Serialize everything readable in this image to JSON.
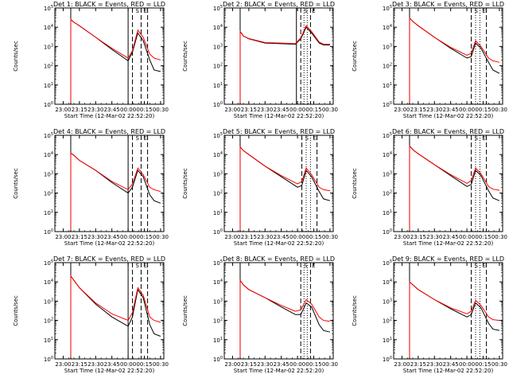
{
  "figure": {
    "background": "#ffffff",
    "black_color": "#000000",
    "red_color": "#ff0000"
  },
  "chart_data": [
    {
      "type": "line",
      "title": "Det 1: BLACK = Events, RED = LLD",
      "xlabel": "Start Time (12-Mar-02 22:52:20)",
      "ylabel": "Counts/sec",
      "x_tick_labels": [
        "23:00",
        "23:15",
        "23:30",
        "23:45",
        "00:00",
        "00:15",
        "00:30"
      ],
      "y_tick_labels": [
        "10^0",
        "10^1",
        "10^2",
        "10^3",
        "10^4",
        "10^5"
      ],
      "y_scale": "log",
      "ylim": [
        1,
        100000
      ],
      "xlim": [
        "22:52:20",
        "00:33"
      ],
      "annotations": [
        "S",
        "E"
      ],
      "solid_vlines": [
        "23:07",
        "00:00"
      ],
      "dashed_vlines": [
        "00:04",
        "00:12",
        "00:18"
      ],
      "dotted_vlines": [],
      "series": [
        {
          "name": "BLACK",
          "color": "#000000",
          "x": [
            "23:07",
            "23:10",
            "23:15",
            "23:30",
            "23:45",
            "00:00",
            "00:04",
            "00:09",
            "00:14",
            "00:20",
            "00:24",
            "00:30"
          ],
          "y": [
            25000,
            18000,
            12000,
            3000,
            700,
            180,
            500,
            5000,
            2000,
            200,
            60,
            50
          ]
        },
        {
          "name": "RED",
          "color": "#ff0000",
          "x": [
            "23:07",
            "23:10",
            "23:15",
            "23:30",
            "23:45",
            "00:00",
            "00:04",
            "00:09",
            "00:14",
            "00:20",
            "00:24",
            "00:30"
          ],
          "y": [
            25000,
            18000,
            12000,
            3000,
            800,
            250,
            600,
            7000,
            3000,
            400,
            250,
            200
          ]
        }
      ]
    },
    {
      "type": "line",
      "title": "Det 2: BLACK = Events, RED = LLD",
      "xlabel": "Start Time (12-Mar-02 22:52:20)",
      "ylabel": "Counts/sec",
      "x_tick_labels": [
        "23:00",
        "23:15",
        "23:30",
        "23:45",
        "00:00",
        "00:15",
        "00:30"
      ],
      "y_tick_labels": [
        "10^0",
        "10^1",
        "10^2",
        "10^3",
        "10^4",
        "10^5"
      ],
      "y_scale": "log",
      "ylim": [
        1,
        100000
      ],
      "xlim": [
        "22:52:20",
        "00:33"
      ],
      "annotations": [
        "S",
        "E"
      ],
      "solid_vlines": [
        "23:07",
        "23:59"
      ],
      "dashed_vlines": [
        "00:03",
        "00:12"
      ],
      "dotted_vlines": [
        "00:06",
        "00:09"
      ],
      "series": [
        {
          "name": "BLACK",
          "color": "#000000",
          "x": [
            "23:07",
            "23:10",
            "23:15",
            "23:30",
            "23:45",
            "23:58",
            "00:03",
            "00:08",
            "00:13",
            "00:20",
            "00:24",
            "00:30"
          ],
          "y": [
            6000,
            3500,
            2500,
            1500,
            1400,
            1300,
            2500,
            10000,
            5000,
            1500,
            1200,
            1200
          ]
        },
        {
          "name": "RED",
          "color": "#ff0000",
          "x": [
            "23:07",
            "23:10",
            "23:15",
            "23:30",
            "23:45",
            "23:58",
            "00:03",
            "00:08",
            "00:13",
            "00:20",
            "00:24",
            "00:30"
          ],
          "y": [
            6000,
            3500,
            2600,
            1600,
            1500,
            1400,
            2800,
            12000,
            6000,
            1700,
            1300,
            1300
          ]
        }
      ]
    },
    {
      "type": "line",
      "title": "Det 3: BLACK = Events, RED = LLD",
      "xlabel": "Start Time (12-Mar-02 22:52:20)",
      "ylabel": "Counts/sec",
      "x_tick_labels": [
        "23:00",
        "23:15",
        "23:30",
        "23:45",
        "00:00",
        "00:15",
        "00:30"
      ],
      "y_tick_labels": [
        "10^0",
        "10^1",
        "10^2",
        "10^3",
        "10^4",
        "10^5"
      ],
      "y_scale": "log",
      "ylim": [
        1,
        100000
      ],
      "xlim": [
        "22:52:20",
        "00:33"
      ],
      "annotations": [
        "S",
        "E"
      ],
      "solid_vlines": [
        "23:07"
      ],
      "dashed_vlines": [
        "00:04",
        "00:18"
      ],
      "dotted_vlines": [
        "00:08",
        "00:12"
      ],
      "series": [
        {
          "name": "BLACK",
          "color": "#000000",
          "x": [
            "23:07",
            "23:10",
            "23:15",
            "23:30",
            "23:45",
            "00:00",
            "00:04",
            "00:08",
            "00:13",
            "00:20",
            "00:24",
            "00:30"
          ],
          "y": [
            30000,
            20000,
            12000,
            3000,
            800,
            250,
            300,
            1500,
            800,
            150,
            60,
            40
          ]
        },
        {
          "name": "RED",
          "color": "#ff0000",
          "x": [
            "23:07",
            "23:10",
            "23:15",
            "23:30",
            "23:45",
            "00:00",
            "00:04",
            "00:08",
            "00:13",
            "00:20",
            "00:24",
            "00:30"
          ],
          "y": [
            30000,
            20000,
            12000,
            3000,
            900,
            350,
            450,
            2000,
            1000,
            250,
            180,
            150
          ]
        }
      ]
    },
    {
      "type": "line",
      "title": "Det 4: BLACK = Events, RED = LLD",
      "xlabel": "Start Time (12-Mar-02 22:52:20)",
      "ylabel": "Counts/sec",
      "x_tick_labels": [
        "23:00",
        "23:15",
        "23:30",
        "23:45",
        "00:00",
        "00:15",
        "00:30"
      ],
      "y_tick_labels": [
        "10^0",
        "10^1",
        "10^2",
        "10^3",
        "10^4",
        "10^5"
      ],
      "y_scale": "log",
      "ylim": [
        1,
        100000
      ],
      "xlim": [
        "22:52:20",
        "00:33"
      ],
      "annotations": [
        "S",
        "E"
      ],
      "solid_vlines": [
        "23:07",
        "00:00"
      ],
      "dashed_vlines": [
        "00:04",
        "00:12",
        "00:18"
      ],
      "dotted_vlines": [],
      "series": [
        {
          "name": "BLACK",
          "color": "#000000",
          "x": [
            "23:07",
            "23:10",
            "23:15",
            "23:30",
            "23:45",
            "00:00",
            "00:04",
            "00:09",
            "00:14",
            "00:20",
            "00:24",
            "00:30"
          ],
          "y": [
            12000,
            9000,
            5000,
            1500,
            350,
            100,
            200,
            1500,
            700,
            80,
            40,
            30
          ]
        },
        {
          "name": "RED",
          "color": "#ff0000",
          "x": [
            "23:07",
            "23:10",
            "23:15",
            "23:30",
            "23:45",
            "00:00",
            "00:04",
            "00:09",
            "00:14",
            "00:20",
            "00:24",
            "00:30"
          ],
          "y": [
            12000,
            9000,
            5000,
            1500,
            400,
            150,
            300,
            2000,
            900,
            200,
            150,
            120
          ]
        }
      ]
    },
    {
      "type": "line",
      "title": "Det 5: BLACK = Events, RED = LLD",
      "xlabel": "Start Time (12-Mar-02 22:52:20)",
      "ylabel": "Counts/sec",
      "x_tick_labels": [
        "23:00",
        "23:15",
        "23:30",
        "23:45",
        "00:00",
        "00:15",
        "00:30"
      ],
      "y_tick_labels": [
        "10^0",
        "10^1",
        "10^2",
        "10^3",
        "10^4",
        "10^5"
      ],
      "y_scale": "log",
      "ylim": [
        1,
        100000
      ],
      "xlim": [
        "22:52:20",
        "00:33"
      ],
      "annotations": [
        "S",
        "E"
      ],
      "solid_vlines": [
        "23:07"
      ],
      "dashed_vlines": [
        "00:04",
        "00:18"
      ],
      "dotted_vlines": [
        "00:08",
        "00:12"
      ],
      "series": [
        {
          "name": "BLACK",
          "color": "#000000",
          "x": [
            "23:07",
            "23:10",
            "23:15",
            "23:30",
            "23:45",
            "00:00",
            "00:04",
            "00:08",
            "00:13",
            "00:20",
            "00:24",
            "00:30"
          ],
          "y": [
            25000,
            16000,
            10000,
            2500,
            700,
            200,
            250,
            1500,
            700,
            120,
            50,
            40
          ]
        },
        {
          "name": "RED",
          "color": "#ff0000",
          "x": [
            "23:07",
            "23:10",
            "23:15",
            "23:30",
            "23:45",
            "00:00",
            "00:04",
            "00:08",
            "00:13",
            "00:20",
            "00:24",
            "00:30"
          ],
          "y": [
            25000,
            16000,
            10000,
            2500,
            800,
            300,
            400,
            2000,
            900,
            200,
            150,
            130
          ]
        }
      ]
    },
    {
      "type": "line",
      "title": "Det 6: BLACK = Events, RED = LLD",
      "xlabel": "Start Time (12-Mar-02 22:52:20)",
      "ylabel": "Counts/sec",
      "x_tick_labels": [
        "23:00",
        "23:15",
        "23:30",
        "23:45",
        "00:00",
        "00:15",
        "00:30"
      ],
      "y_tick_labels": [
        "10^0",
        "10^1",
        "10^2",
        "10^3",
        "10^4",
        "10^5"
      ],
      "y_scale": "log",
      "ylim": [
        1,
        100000
      ],
      "xlim": [
        "22:52:20",
        "00:33"
      ],
      "annotations": [
        "S",
        "E"
      ],
      "solid_vlines": [
        "23:07"
      ],
      "dashed_vlines": [
        "00:04",
        "00:18"
      ],
      "dotted_vlines": [
        "00:08",
        "00:12"
      ],
      "series": [
        {
          "name": "BLACK",
          "color": "#000000",
          "x": [
            "23:07",
            "23:10",
            "23:15",
            "23:30",
            "23:45",
            "00:00",
            "00:04",
            "00:08",
            "00:13",
            "00:20",
            "00:24",
            "00:30"
          ],
          "y": [
            28000,
            18000,
            11000,
            3000,
            800,
            220,
            280,
            1500,
            800,
            130,
            55,
            40
          ]
        },
        {
          "name": "RED",
          "color": "#ff0000",
          "x": [
            "23:07",
            "23:10",
            "23:15",
            "23:30",
            "23:45",
            "00:00",
            "00:04",
            "00:08",
            "00:13",
            "00:20",
            "00:24",
            "00:30"
          ],
          "y": [
            28000,
            18000,
            11000,
            3000,
            900,
            320,
            450,
            2000,
            1000,
            220,
            160,
            140
          ]
        }
      ]
    },
    {
      "type": "line",
      "title": "Det 7: BLACK = Events, RED = LLD",
      "xlabel": "Start Time (12-Mar-02 22:52:20)",
      "ylabel": "Counts/sec",
      "x_tick_labels": [
        "23:00",
        "23:15",
        "23:30",
        "23:45",
        "00:00",
        "00:15",
        "00:30"
      ],
      "y_tick_labels": [
        "10^0",
        "10^1",
        "10^2",
        "10^3",
        "10^4",
        "10^5"
      ],
      "y_scale": "log",
      "ylim": [
        1,
        100000
      ],
      "xlim": [
        "22:52:20",
        "00:33"
      ],
      "annotations": [
        "S",
        "E"
      ],
      "solid_vlines": [
        "23:07",
        "00:00"
      ],
      "dashed_vlines": [
        "00:04",
        "00:12",
        "00:18"
      ],
      "dotted_vlines": [],
      "series": [
        {
          "name": "BLACK",
          "color": "#000000",
          "x": [
            "23:07",
            "23:10",
            "23:15",
            "23:30",
            "23:45",
            "00:00",
            "00:04",
            "00:09",
            "00:14",
            "00:20",
            "00:24",
            "00:30"
          ],
          "y": [
            20000,
            12000,
            5000,
            700,
            150,
            50,
            150,
            4000,
            1500,
            60,
            20,
            15
          ]
        },
        {
          "name": "RED",
          "color": "#ff0000",
          "x": [
            "23:07",
            "23:10",
            "23:15",
            "23:30",
            "23:45",
            "00:00",
            "00:04",
            "00:09",
            "00:14",
            "00:20",
            "00:24",
            "00:30"
          ],
          "y": [
            20000,
            12000,
            5000,
            800,
            220,
            100,
            250,
            5000,
            2000,
            150,
            100,
            80
          ]
        }
      ]
    },
    {
      "type": "line",
      "title": "Det 8: BLACK = Events, RED = LLD",
      "xlabel": "Start Time (12-Mar-02 22:52:20)",
      "ylabel": "Counts/sec",
      "x_tick_labels": [
        "23:00",
        "23:15",
        "23:30",
        "23:45",
        "00:00",
        "00:15",
        "00:30"
      ],
      "y_tick_labels": [
        "10^0",
        "10^1",
        "10^2",
        "10^3",
        "10^4",
        "10^5"
      ],
      "y_scale": "log",
      "ylim": [
        1,
        100000
      ],
      "xlim": [
        "22:52:20",
        "00:33"
      ],
      "annotations": [
        "S",
        "E"
      ],
      "solid_vlines": [
        "23:07"
      ],
      "dashed_vlines": [
        "00:03",
        "00:12"
      ],
      "dotted_vlines": [
        "00:06",
        "00:09"
      ],
      "series": [
        {
          "name": "BLACK",
          "color": "#000000",
          "x": [
            "23:07",
            "23:10",
            "23:15",
            "23:30",
            "23:45",
            "23:58",
            "00:03",
            "00:08",
            "00:13",
            "00:20",
            "00:24",
            "00:30"
          ],
          "y": [
            12000,
            7000,
            4000,
            1500,
            500,
            200,
            200,
            800,
            500,
            60,
            30,
            25
          ]
        },
        {
          "name": "RED",
          "color": "#ff0000",
          "x": [
            "23:07",
            "23:10",
            "23:15",
            "23:30",
            "23:45",
            "23:58",
            "00:03",
            "00:08",
            "00:13",
            "00:20",
            "00:24",
            "00:30"
          ],
          "y": [
            12000,
            7000,
            4000,
            1500,
            600,
            300,
            350,
            1200,
            700,
            150,
            100,
            90
          ]
        }
      ]
    },
    {
      "type": "line",
      "title": "Det 9: BLACK = Events, RED = LLD",
      "xlabel": "Start Time (12-Mar-02 22:52:20)",
      "ylabel": "Counts/sec",
      "x_tick_labels": [
        "23:00",
        "23:15",
        "23:30",
        "23:45",
        "00:00",
        "00:15",
        "00:30"
      ],
      "y_tick_labels": [
        "10^0",
        "10^1",
        "10^2",
        "10^3",
        "10^4",
        "10^5"
      ],
      "y_scale": "log",
      "ylim": [
        1,
        100000
      ],
      "xlim": [
        "22:52:20",
        "00:33"
      ],
      "annotations": [
        "S",
        "E"
      ],
      "solid_vlines": [
        "23:07"
      ],
      "dashed_vlines": [
        "00:04",
        "00:18"
      ],
      "dotted_vlines": [
        "00:08",
        "00:12"
      ],
      "series": [
        {
          "name": "BLACK",
          "color": "#000000",
          "x": [
            "23:07",
            "23:10",
            "23:15",
            "23:30",
            "23:45",
            "00:00",
            "00:04",
            "00:08",
            "00:13",
            "00:20",
            "00:24",
            "00:30"
          ],
          "y": [
            10000,
            7000,
            4000,
            1200,
            400,
            150,
            200,
            800,
            450,
            70,
            35,
            30
          ]
        },
        {
          "name": "RED",
          "color": "#ff0000",
          "x": [
            "23:07",
            "23:10",
            "23:15",
            "23:30",
            "23:45",
            "00:00",
            "00:04",
            "00:08",
            "00:13",
            "00:20",
            "00:24",
            "00:30"
          ],
          "y": [
            10000,
            7000,
            4000,
            1200,
            450,
            220,
            300,
            1100,
            600,
            150,
            110,
            100
          ]
        }
      ]
    }
  ]
}
